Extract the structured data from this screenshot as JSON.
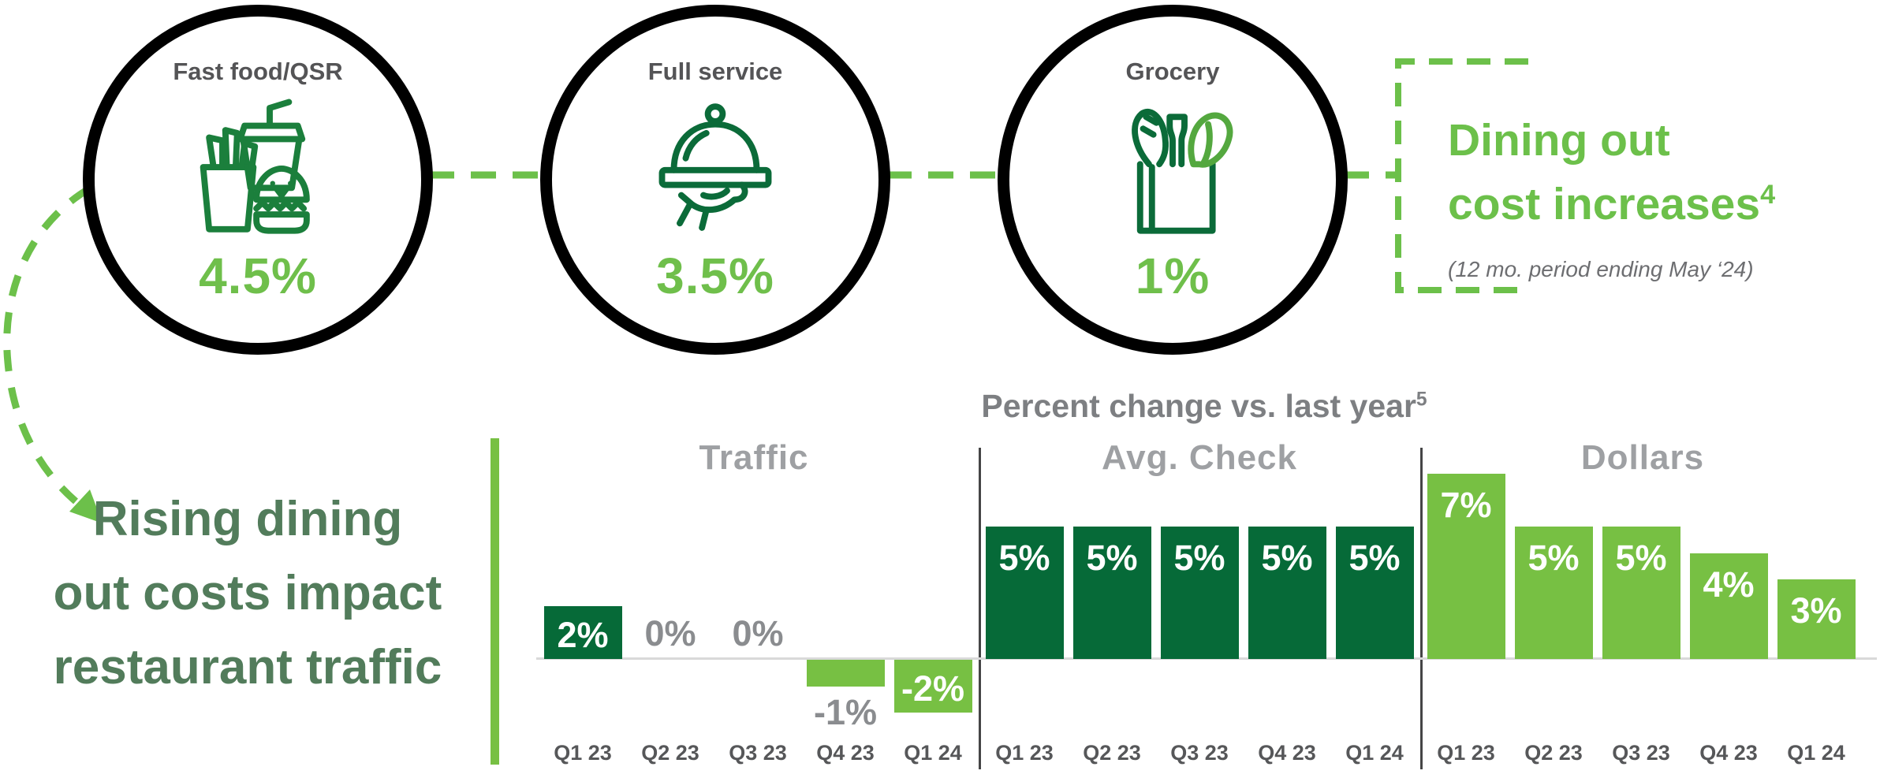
{
  "colors": {
    "dark_green_bar": "#066A38",
    "light_green_bar": "#77C043",
    "accent_green": "#6CC04A",
    "note_green": "#527C5B",
    "label_gray": "#545456",
    "section_gray": "#9EA0A3",
    "title_gray": "#7D7F82"
  },
  "circles": [
    {
      "label": "Fast food/QSR",
      "value": "4.5%",
      "icon": "fast-food-icon"
    },
    {
      "label": "Full service",
      "value": "3.5%",
      "icon": "serving-cloche-icon"
    },
    {
      "label": "Grocery",
      "value": "1%",
      "icon": "grocery-bag-icon"
    }
  ],
  "callout": {
    "title_line1": "Dining out",
    "title_line2": "cost increases",
    "title_superscript": "4",
    "subtitle": "(12 mo. period ending May ‘24)"
  },
  "left_note": {
    "line1": "Rising dining",
    "line2": "out costs impact",
    "line3": "restaurant traffic"
  },
  "chart_data": {
    "type": "bar",
    "title": "Percent change vs. last year",
    "title_superscript": "5",
    "unit": "%",
    "ylim": [
      -2,
      7
    ],
    "grid": false,
    "legend_position": "none",
    "categories": [
      "Q1 23",
      "Q2 23",
      "Q3 23",
      "Q4 23",
      "Q1 24"
    ],
    "series": [
      {
        "name": "Traffic",
        "values": [
          2,
          0,
          0,
          -1,
          -2
        ]
      },
      {
        "name": "Avg. Check",
        "values": [
          5,
          5,
          5,
          5,
          5
        ]
      },
      {
        "name": "Dollars",
        "values": [
          7,
          5,
          5,
          4,
          3
        ]
      }
    ]
  }
}
